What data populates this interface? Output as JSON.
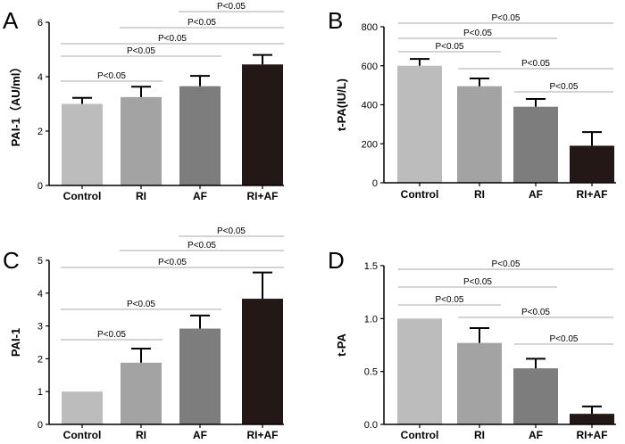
{
  "colors": {
    "Control": "#bcbcbc",
    "RI": "#a3a3a3",
    "AF": "#7d7d7d",
    "RI+AF": "#231816",
    "sig_line": "#a8a8a8",
    "axis": "#000000"
  },
  "chart_data": [
    {
      "panel": "A",
      "type": "bar",
      "ylabel": "PAI-1（AU/ml）",
      "categories": [
        "Control",
        "RI",
        "AF",
        "RI+AF"
      ],
      "values": [
        3.0,
        3.25,
        3.65,
        4.45
      ],
      "errors": [
        0.22,
        0.38,
        0.38,
        0.35
      ],
      "ylim": [
        0,
        6
      ],
      "yticks": [
        0,
        2,
        4,
        6
      ],
      "yticklabels": [
        "0",
        "2",
        "4",
        "6"
      ],
      "significance": [
        {
          "from": 0,
          "to": 1,
          "label": "P<0.05"
        },
        {
          "from": 0,
          "to": 2,
          "label": "P<0.05"
        },
        {
          "from": 0,
          "to": 3,
          "label": "P<0.05"
        },
        {
          "from": 1,
          "to": 3,
          "label": "P<0.05"
        },
        {
          "from": 2,
          "to": 3,
          "label": "P<0.05"
        }
      ]
    },
    {
      "panel": "B",
      "type": "bar",
      "ylabel": "t-PA(IU/L)",
      "categories": [
        "Control",
        "RI",
        "AF",
        "RI+AF"
      ],
      "values": [
        600,
        495,
        390,
        190
      ],
      "errors": [
        35,
        40,
        40,
        70
      ],
      "ylim": [
        0,
        800
      ],
      "yticks": [
        0,
        200,
        400,
        600,
        800
      ],
      "yticklabels": [
        "0",
        "200",
        "400",
        "600",
        "800"
      ],
      "significance": [
        {
          "from": 0,
          "to": 1,
          "label": "P<0.05"
        },
        {
          "from": 0,
          "to": 2,
          "label": "P<0.05"
        },
        {
          "from": 0,
          "to": 3,
          "label": "P<0.05"
        },
        {
          "from": 1,
          "to": 3,
          "label": "P<0.05"
        },
        {
          "from": 2,
          "to": 3,
          "label": "P<0.05"
        }
      ]
    },
    {
      "panel": "C",
      "type": "bar",
      "ylabel": "PAI-1",
      "categories": [
        "Control",
        "RI",
        "AF",
        "RI+AF"
      ],
      "values": [
        1.0,
        1.88,
        2.92,
        3.83
      ],
      "errors": [
        0,
        0.43,
        0.4,
        0.8
      ],
      "ylim": [
        0,
        5
      ],
      "yticks": [
        0,
        1,
        2,
        3,
        4,
        5
      ],
      "yticklabels": [
        "0",
        "1",
        "2",
        "3",
        "4",
        "5"
      ],
      "significance": [
        {
          "from": 0,
          "to": 1,
          "label": "P<0.05"
        },
        {
          "from": 0,
          "to": 2,
          "label": "P<0.05"
        },
        {
          "from": 0,
          "to": 3,
          "label": "P<0.05"
        },
        {
          "from": 1,
          "to": 3,
          "label": "P<0.05"
        },
        {
          "from": 2,
          "to": 3,
          "label": "P<0.05"
        }
      ]
    },
    {
      "panel": "D",
      "type": "bar",
      "ylabel": "t-PA",
      "categories": [
        "Control",
        "RI",
        "AF",
        "RI+AF"
      ],
      "values": [
        1.0,
        0.77,
        0.53,
        0.1
      ],
      "errors": [
        0,
        0.14,
        0.09,
        0.07
      ],
      "ylim": [
        0,
        1.5
      ],
      "yticks": [
        0,
        0.5,
        1.0,
        1.5
      ],
      "yticklabels": [
        "0.0",
        "0.5",
        "1.0",
        "1.5"
      ],
      "significance": [
        {
          "from": 0,
          "to": 1,
          "label": "P<0.05"
        },
        {
          "from": 0,
          "to": 2,
          "label": "P<0.05"
        },
        {
          "from": 0,
          "to": 3,
          "label": "P<0.05"
        },
        {
          "from": 1,
          "to": 3,
          "label": "P<0.05"
        },
        {
          "from": 2,
          "to": 3,
          "label": "P<0.05"
        }
      ]
    }
  ]
}
